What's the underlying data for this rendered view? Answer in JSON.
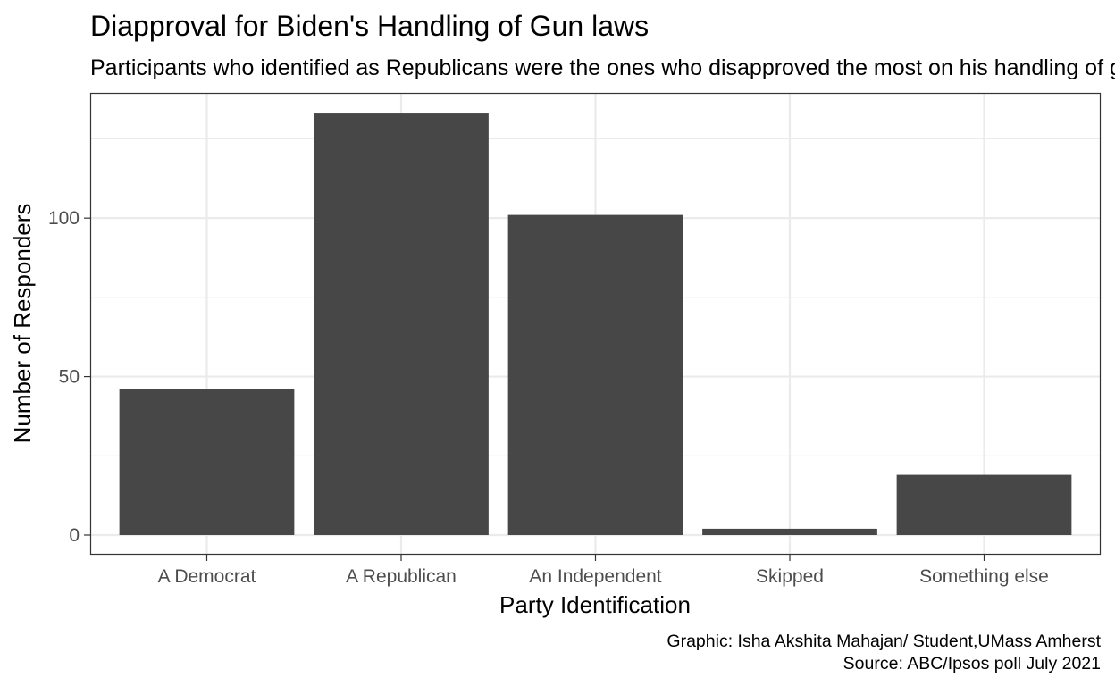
{
  "chart_data": {
    "type": "bar",
    "title": "Diapproval for Biden's Handling of Gun laws",
    "subtitle": "Participants who identified as Republicans were the ones who disapproved the most on his handling of gun laws",
    "xlabel": "Party Identification",
    "ylabel": "Number of Responders",
    "categories": [
      "A Democrat",
      "A Republican",
      "An Independent",
      "Skipped",
      "Something else"
    ],
    "values": [
      46,
      133,
      101,
      2,
      19
    ],
    "ylim": [
      -6.2,
      139.5
    ],
    "yticks": [
      0,
      50,
      100
    ],
    "grid": true,
    "bar_color": "#474747",
    "caption": [
      "Graphic: Isha Akshita Mahajan/ Student,UMass Amherst",
      "Source: ABC/Ipsos poll July 2021"
    ]
  }
}
